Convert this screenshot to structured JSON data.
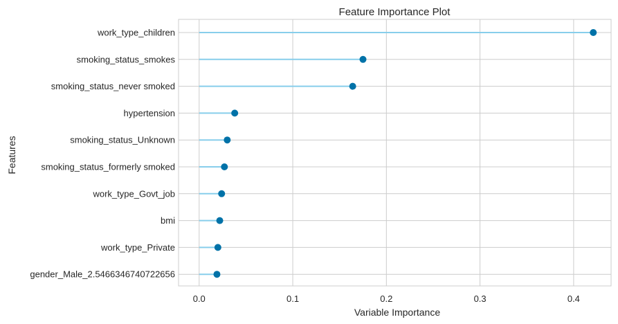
{
  "chart_data": {
    "type": "lollipop",
    "title": "Feature Importance Plot",
    "xlabel": "Variable Importance",
    "ylabel": "Features",
    "xlim": [
      -0.022,
      0.44
    ],
    "xticks": [
      0.0,
      0.1,
      0.2,
      0.3,
      0.4
    ],
    "xtick_labels": [
      "0.0",
      "0.1",
      "0.2",
      "0.3",
      "0.4"
    ],
    "grid": true,
    "colors": {
      "stem": "#87ceeb",
      "marker": "#0072a8",
      "grid": "#cccccc",
      "spine": "#cccccc"
    },
    "categories": [
      "work_type_children",
      "smoking_status_smokes",
      "smoking_status_never smoked",
      "hypertension",
      "smoking_status_Unknown",
      "smoking_status_formerly smoked",
      "work_type_Govt_job",
      "bmi",
      "work_type_Private",
      "gender_Male_2.5466346740722656"
    ],
    "values": [
      0.421,
      0.175,
      0.164,
      0.038,
      0.03,
      0.027,
      0.024,
      0.022,
      0.02,
      0.019
    ]
  }
}
